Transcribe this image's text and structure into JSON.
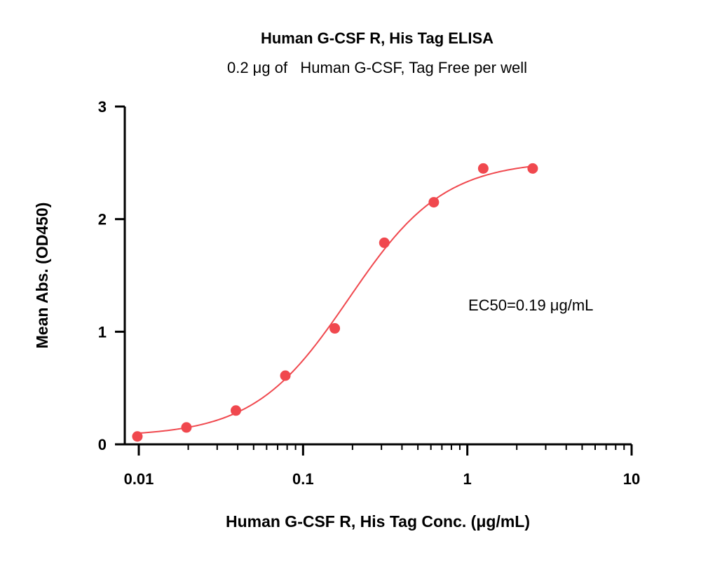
{
  "chart_data": {
    "type": "scatter",
    "title": "Human G-CSF R, His Tag ELISA",
    "subtitle": "0.2 μg of   Human G-CSF, Tag Free per well",
    "xlabel": "Human G-CSF R, His Tag Conc. (μg/mL)",
    "ylabel": "Mean Abs. (OD450)",
    "x_scale": "log",
    "xlim": [
      0.01,
      10
    ],
    "ylim": [
      0,
      3
    ],
    "x_ticks": [
      0.01,
      0.1,
      1,
      10
    ],
    "x_tick_labels": [
      "0.01",
      "0.1",
      "1",
      "10"
    ],
    "y_ticks": [
      0,
      1,
      2,
      3
    ],
    "y_tick_labels": [
      "0",
      "1",
      "2",
      "3"
    ],
    "grid": false,
    "series": [
      {
        "x": [
          0.0098,
          0.0195,
          0.039,
          0.078,
          0.156,
          0.3125,
          0.625,
          1.25,
          2.5
        ],
        "y": [
          0.07,
          0.15,
          0.3,
          0.61,
          1.03,
          1.79,
          2.15,
          2.45,
          2.45
        ],
        "color": "#f0484e"
      }
    ],
    "fit_curve": {
      "model": "4PL",
      "bottom": 0.07,
      "top": 2.52,
      "ec50": 0.19,
      "hill": 1.5,
      "color": "#f0484e"
    },
    "annotations": [
      {
        "text": "EC50=0.19 μg/mL"
      }
    ]
  }
}
